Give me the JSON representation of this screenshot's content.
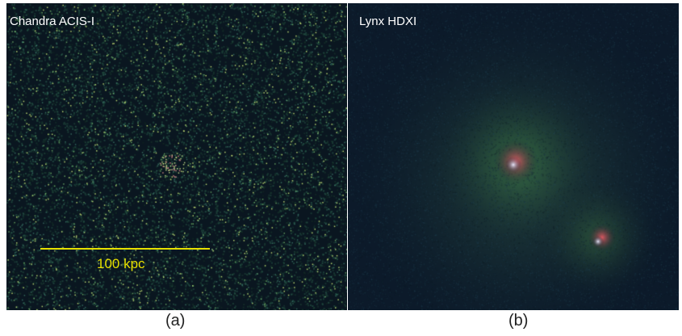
{
  "panels": [
    {
      "title": "Chandra ACIS-I",
      "scalebar_label": "100 kpc",
      "caption": "(a)"
    },
    {
      "title": "Lynx HDXI",
      "caption": "(b)"
    }
  ],
  "colors": {
    "background": "#0b1a26",
    "noise": "#6fae6a",
    "source_core": "#e0e8ff",
    "source_halo": "#e06a6a",
    "scalebar": "#e6e000"
  }
}
